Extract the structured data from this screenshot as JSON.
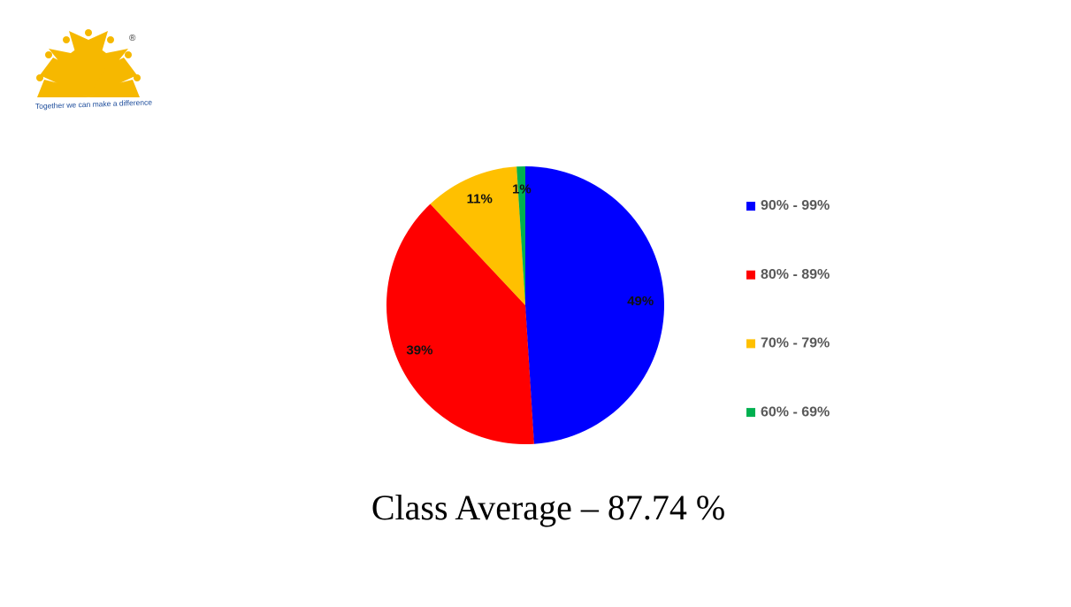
{
  "logo": {
    "mark": "®",
    "tagline": "Together we can make a difference"
  },
  "chart_data": {
    "type": "pie",
    "title": "Class Average – 87.74 %",
    "categories": [
      "90% - 99%",
      "80% - 89%",
      "70% - 79%",
      "60% - 69%"
    ],
    "values": [
      49,
      39,
      11,
      1
    ],
    "value_labels": [
      "49%",
      "39%",
      "11%",
      "1%"
    ],
    "colors": [
      "#0000ff",
      "#ff0000",
      "#ffc000",
      "#00b050"
    ],
    "legend": "right"
  }
}
